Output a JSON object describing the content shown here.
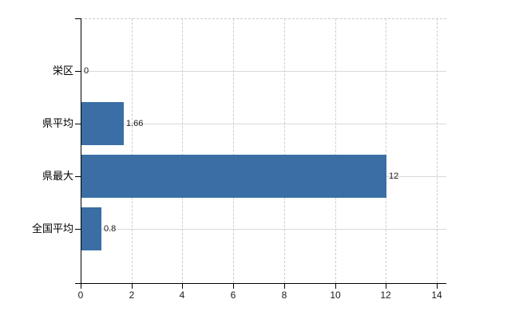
{
  "chart_data": {
    "type": "bar",
    "orientation": "horizontal",
    "title": "",
    "xlabel": "",
    "ylabel": "",
    "categories": [
      "栄区",
      "県平均",
      "県最大",
      "全国平均"
    ],
    "values": [
      0,
      1.66,
      12,
      0.8
    ],
    "value_labels": [
      "0",
      "1.66",
      "12",
      "0.8"
    ],
    "xlim": [
      0,
      14
    ],
    "xticks": [
      0,
      2,
      4,
      6,
      8,
      10,
      12,
      14
    ],
    "xtick_labels": [
      "0",
      "2",
      "4",
      "6",
      "8",
      "10",
      "12",
      "14"
    ],
    "legend": "none",
    "grid": {
      "horizontal_style": "solid",
      "vertical_style": "dashed",
      "top_border_style": "dashed"
    },
    "colors": {
      "bar": "#3a6ea5",
      "axis": "#000000",
      "grid_horizontal": "#d9d9d9",
      "grid_vertical": "#cdcdcd",
      "text": "#1a1a1a",
      "background": "#ffffff"
    }
  }
}
